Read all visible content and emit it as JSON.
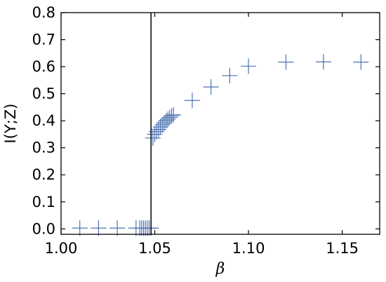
{
  "chart_data": {
    "type": "scatter",
    "title": "",
    "xlabel": "β",
    "ylabel": "I(Y;Z)",
    "xlim": [
      1.0,
      1.17
    ],
    "ylim": [
      -0.02,
      0.8
    ],
    "xticks": [
      1.0,
      1.05,
      1.1,
      1.15
    ],
    "xtick_labels": [
      "1.00",
      "1.05",
      "1.10",
      "1.15"
    ],
    "yticks": [
      0.0,
      0.1,
      0.2,
      0.3,
      0.4,
      0.5,
      0.6,
      0.7,
      0.8
    ],
    "ytick_labels": [
      "0.0",
      "0.1",
      "0.2",
      "0.3",
      "0.4",
      "0.5",
      "0.6",
      "0.7",
      "0.8"
    ],
    "grid": false,
    "marker": "plus",
    "marker_color": "#4c72b0",
    "vline_x": 1.048,
    "vline_color": "#000000",
    "points": [
      {
        "x": 1.01,
        "y": 0.003
      },
      {
        "x": 1.02,
        "y": 0.003
      },
      {
        "x": 1.03,
        "y": 0.003
      },
      {
        "x": 1.04,
        "y": 0.003
      },
      {
        "x": 1.042,
        "y": 0.003
      },
      {
        "x": 1.043,
        "y": 0.003
      },
      {
        "x": 1.044,
        "y": 0.003
      },
      {
        "x": 1.045,
        "y": 0.003
      },
      {
        "x": 1.046,
        "y": 0.003
      },
      {
        "x": 1.047,
        "y": 0.003
      },
      {
        "x": 1.048,
        "y": 0.003
      },
      {
        "x": 1.049,
        "y": 0.336
      },
      {
        "x": 1.05,
        "y": 0.35
      },
      {
        "x": 1.051,
        "y": 0.36
      },
      {
        "x": 1.052,
        "y": 0.368
      },
      {
        "x": 1.053,
        "y": 0.377
      },
      {
        "x": 1.054,
        "y": 0.385
      },
      {
        "x": 1.055,
        "y": 0.392
      },
      {
        "x": 1.056,
        "y": 0.4
      },
      {
        "x": 1.057,
        "y": 0.406
      },
      {
        "x": 1.058,
        "y": 0.412
      },
      {
        "x": 1.059,
        "y": 0.418
      },
      {
        "x": 1.06,
        "y": 0.422
      },
      {
        "x": 1.07,
        "y": 0.475
      },
      {
        "x": 1.08,
        "y": 0.525
      },
      {
        "x": 1.09,
        "y": 0.567
      },
      {
        "x": 1.1,
        "y": 0.602
      },
      {
        "x": 1.12,
        "y": 0.617
      },
      {
        "x": 1.14,
        "y": 0.618
      },
      {
        "x": 1.16,
        "y": 0.617
      }
    ]
  }
}
